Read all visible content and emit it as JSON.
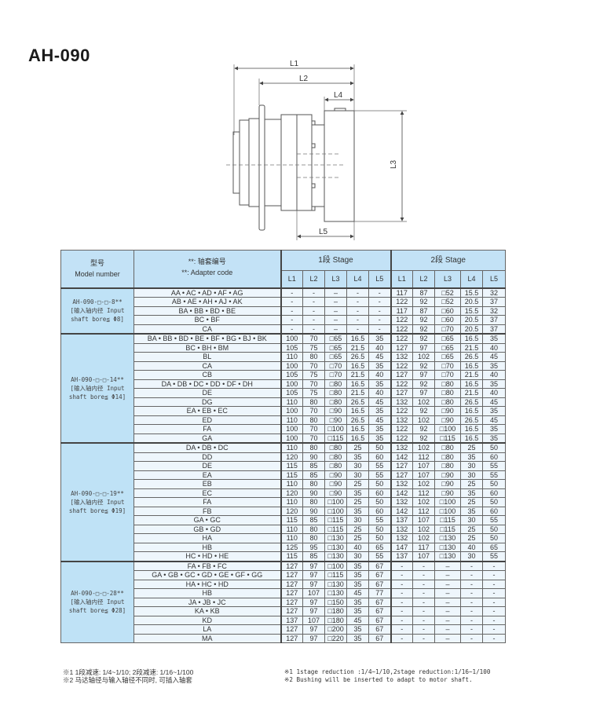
{
  "title": "AH-090",
  "drawing": {
    "labels": {
      "l1": "L1",
      "l2": "L2",
      "l3": "L3",
      "l4": "L4",
      "l5": "L5"
    }
  },
  "table": {
    "header": {
      "model_cn": "型号",
      "model_en": "Model number",
      "adapter_cn": "**: 轴套编号",
      "adapter_en": "**:  Adapter code",
      "stage1": "1段 Stage",
      "stage2": "2段 Stage",
      "cols": [
        "L1",
        "L2",
        "L3",
        "L4",
        "L5"
      ]
    },
    "groups": [
      {
        "model": [
          "AH-090-□-□-8**",
          "[输入轴内径 Input",
          "shaft bore≦ Φ8]"
        ],
        "rows": [
          {
            "code": "AA • AC • AD • AF • AG",
            "s1": [
              "-",
              "-",
              "–",
              "-",
              "-"
            ],
            "s2": [
              "117",
              "87",
              "□52",
              "15.5",
              "32"
            ]
          },
          {
            "code": "AB • AE • AH • AJ • AK",
            "s1": [
              "-",
              "-",
              "–",
              "-",
              "-"
            ],
            "s2": [
              "122",
              "92",
              "□52",
              "20.5",
              "37"
            ]
          },
          {
            "code": "BA • BB • BD • BE",
            "s1": [
              "-",
              "-",
              "–",
              "-",
              "-"
            ],
            "s2": [
              "117",
              "87",
              "□60",
              "15.5",
              "32"
            ]
          },
          {
            "code": "BC • BF",
            "s1": [
              "-",
              "-",
              "–",
              "-",
              "-"
            ],
            "s2": [
              "122",
              "92",
              "□60",
              "20.5",
              "37"
            ]
          },
          {
            "code": "CA",
            "s1": [
              "-",
              "-",
              "–",
              "-",
              "-"
            ],
            "s2": [
              "122",
              "92",
              "□70",
              "20.5",
              "37"
            ]
          }
        ]
      },
      {
        "model": [
          "AH-090-□-□-14**",
          "[输入轴内径 Input",
          "shaft bore≦ Φ14]"
        ],
        "rows": [
          {
            "code": "BA • BB • BD • BE • BF • BG • BJ • BK",
            "s1": [
              "100",
              "70",
              "□65",
              "16.5",
              "35"
            ],
            "s2": [
              "122",
              "92",
              "□65",
              "16.5",
              "35"
            ]
          },
          {
            "code": "BC • BH • BM",
            "s1": [
              "105",
              "75",
              "□65",
              "21.5",
              "40"
            ],
            "s2": [
              "127",
              "97",
              "□65",
              "21.5",
              "40"
            ]
          },
          {
            "code": "BL",
            "s1": [
              "110",
              "80",
              "□65",
              "26.5",
              "45"
            ],
            "s2": [
              "132",
              "102",
              "□65",
              "26.5",
              "45"
            ]
          },
          {
            "code": "CA",
            "s1": [
              "100",
              "70",
              "□70",
              "16.5",
              "35"
            ],
            "s2": [
              "122",
              "92",
              "□70",
              "16.5",
              "35"
            ]
          },
          {
            "code": "CB",
            "s1": [
              "105",
              "75",
              "□70",
              "21.5",
              "40"
            ],
            "s2": [
              "127",
              "97",
              "□70",
              "21.5",
              "40"
            ]
          },
          {
            "code": "DA • DB • DC • DD • DF • DH",
            "s1": [
              "100",
              "70",
              "□80",
              "16.5",
              "35"
            ],
            "s2": [
              "122",
              "92",
              "□80",
              "16.5",
              "35"
            ]
          },
          {
            "code": "DE",
            "s1": [
              "105",
              "75",
              "□80",
              "21.5",
              "40"
            ],
            "s2": [
              "127",
              "97",
              "□80",
              "21.5",
              "40"
            ]
          },
          {
            "code": "DG",
            "s1": [
              "110",
              "80",
              "□80",
              "26.5",
              "45"
            ],
            "s2": [
              "132",
              "102",
              "□80",
              "26.5",
              "45"
            ]
          },
          {
            "code": "EA • EB • EC",
            "s1": [
              "100",
              "70",
              "□90",
              "16.5",
              "35"
            ],
            "s2": [
              "122",
              "92",
              "□90",
              "16.5",
              "35"
            ]
          },
          {
            "code": "ED",
            "s1": [
              "110",
              "80",
              "□90",
              "26.5",
              "45"
            ],
            "s2": [
              "132",
              "102",
              "□90",
              "26.5",
              "45"
            ]
          },
          {
            "code": "FA",
            "s1": [
              "100",
              "70",
              "□100",
              "16.5",
              "35"
            ],
            "s2": [
              "122",
              "92",
              "□100",
              "16.5",
              "35"
            ]
          },
          {
            "code": "GA",
            "s1": [
              "100",
              "70",
              "□115",
              "16.5",
              "35"
            ],
            "s2": [
              "122",
              "92",
              "□115",
              "16.5",
              "35"
            ]
          }
        ]
      },
      {
        "model": [
          "AH-090-□-□-19**",
          "[输入轴内径 Input",
          "shaft bore≦ Φ19]"
        ],
        "rows": [
          {
            "code": "DA • DB • DC",
            "s1": [
              "110",
              "80",
              "□80",
              "25",
              "50"
            ],
            "s2": [
              "132",
              "102",
              "□80",
              "25",
              "50"
            ]
          },
          {
            "code": "DD",
            "s1": [
              "120",
              "90",
              "□80",
              "35",
              "60"
            ],
            "s2": [
              "142",
              "112",
              "□80",
              "35",
              "60"
            ]
          },
          {
            "code": "DE",
            "s1": [
              "115",
              "85",
              "□80",
              "30",
              "55"
            ],
            "s2": [
              "127",
              "107",
              "□80",
              "30",
              "55"
            ]
          },
          {
            "code": "EA",
            "s1": [
              "115",
              "85",
              "□90",
              "30",
              "55"
            ],
            "s2": [
              "127",
              "107",
              "□90",
              "30",
              "55"
            ]
          },
          {
            "code": "EB",
            "s1": [
              "110",
              "80",
              "□90",
              "25",
              "50"
            ],
            "s2": [
              "132",
              "102",
              "□90",
              "25",
              "50"
            ]
          },
          {
            "code": "EC",
            "s1": [
              "120",
              "90",
              "□90",
              "35",
              "60"
            ],
            "s2": [
              "142",
              "112",
              "□90",
              "35",
              "60"
            ]
          },
          {
            "code": "FA",
            "s1": [
              "110",
              "80",
              "□100",
              "25",
              "50"
            ],
            "s2": [
              "132",
              "102",
              "□100",
              "25",
              "50"
            ]
          },
          {
            "code": "FB",
            "s1": [
              "120",
              "90",
              "□100",
              "35",
              "60"
            ],
            "s2": [
              "142",
              "112",
              "□100",
              "35",
              "60"
            ]
          },
          {
            "code": "GA • GC",
            "s1": [
              "115",
              "85",
              "□115",
              "30",
              "55"
            ],
            "s2": [
              "137",
              "107",
              "□115",
              "30",
              "55"
            ]
          },
          {
            "code": "GB • GD",
            "s1": [
              "110",
              "80",
              "□115",
              "25",
              "50"
            ],
            "s2": [
              "132",
              "102",
              "□115",
              "25",
              "50"
            ]
          },
          {
            "code": "HA",
            "s1": [
              "110",
              "80",
              "□130",
              "25",
              "50"
            ],
            "s2": [
              "132",
              "102",
              "□130",
              "25",
              "50"
            ]
          },
          {
            "code": "HB",
            "s1": [
              "125",
              "95",
              "□130",
              "40",
              "65"
            ],
            "s2": [
              "147",
              "117",
              "□130",
              "40",
              "65"
            ]
          },
          {
            "code": "HC • HD • HE",
            "s1": [
              "115",
              "85",
              "□130",
              "30",
              "55"
            ],
            "s2": [
              "137",
              "107",
              "□130",
              "30",
              "55"
            ]
          }
        ]
      },
      {
        "model": [
          "AH-090-□-□-28**",
          "[输入轴内径 Input",
          "shaft bore≦ Φ28]"
        ],
        "rows": [
          {
            "code": "FA • FB • FC",
            "s1": [
              "127",
              "97",
              "□100",
              "35",
              "67"
            ],
            "s2": [
              "-",
              "-",
              "–",
              "-",
              "-"
            ]
          },
          {
            "code": "GA • GB • GC • GD • GE • GF • GG",
            "s1": [
              "127",
              "97",
              "□115",
              "35",
              "67"
            ],
            "s2": [
              "-",
              "-",
              "–",
              "-",
              "-"
            ]
          },
          {
            "code": "HA • HC • HD",
            "s1": [
              "127",
              "97",
              "□130",
              "35",
              "67"
            ],
            "s2": [
              "-",
              "-",
              "–",
              "-",
              "-"
            ]
          },
          {
            "code": "HB",
            "s1": [
              "127",
              "107",
              "□130",
              "45",
              "77"
            ],
            "s2": [
              "-",
              "-",
              "–",
              "-",
              "-"
            ]
          },
          {
            "code": "JA • JB • JC",
            "s1": [
              "127",
              "97",
              "□150",
              "35",
              "67"
            ],
            "s2": [
              "-",
              "-",
              "–",
              "-",
              "-"
            ]
          },
          {
            "code": "KA • KB",
            "s1": [
              "127",
              "97",
              "□180",
              "35",
              "67"
            ],
            "s2": [
              "-",
              "-",
              "–",
              "-",
              "-"
            ]
          },
          {
            "code": "KD",
            "s1": [
              "137",
              "107",
              "□180",
              "45",
              "67"
            ],
            "s2": [
              "-",
              "-",
              "–",
              "-",
              "-"
            ]
          },
          {
            "code": "LA",
            "s1": [
              "127",
              "97",
              "□200",
              "35",
              "67"
            ],
            "s2": [
              "-",
              "-",
              "–",
              "-",
              "-"
            ]
          },
          {
            "code": "MA",
            "s1": [
              "127",
              "97",
              "□220",
              "35",
              "67"
            ],
            "s2": [
              "-",
              "-",
              "–",
              "-",
              "-"
            ]
          }
        ]
      }
    ]
  },
  "notes": {
    "cn": [
      "※1 1段减速: 1/4~1/10; 2段减速: 1/16~1/100",
      "※2 马达轴径与输入轴径不同时, 可插入轴套"
    ],
    "en": [
      "※1 1stage reduction :1/4~1/10,2stage reduction:1/16~1/100",
      "※2 Bushing will be inserted to adapt to motor shaft."
    ]
  }
}
